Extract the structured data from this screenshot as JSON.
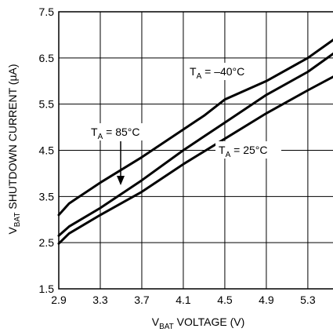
{
  "chart_data": {
    "type": "line",
    "xlabel": {
      "main": "V",
      "sub": "BAT",
      "rest": " VOLTAGE (V)"
    },
    "ylabel": {
      "main": "V",
      "sub": "BAT",
      "rest": " SHUTDOWN CURRENT (µA)"
    },
    "xlim": [
      2.9,
      5.55
    ],
    "ylim": [
      1.5,
      7.5
    ],
    "xticks": [
      2.9,
      3.3,
      3.7,
      4.1,
      4.5,
      4.9,
      5.3
    ],
    "xtick_labels": [
      "2.9",
      "3.3",
      "3.7",
      "4.1",
      "4.5",
      "4.9",
      "5.3"
    ],
    "yticks": [
      1.5,
      2.5,
      3.5,
      4.5,
      5.5,
      6.5,
      7.5
    ],
    "ytick_labels": [
      "1.5",
      "2.5",
      "3.5",
      "4.5",
      "5.5",
      "6.5",
      "7.5"
    ],
    "grid": true,
    "series": [
      {
        "name": "TA = –40°C",
        "x": [
          2.9,
          3.0,
          3.3,
          3.7,
          4.1,
          4.3,
          4.5,
          4.9,
          5.3,
          5.55
        ],
        "y": [
          3.1,
          3.35,
          3.8,
          4.35,
          4.95,
          5.25,
          5.6,
          6.0,
          6.5,
          6.9
        ]
      },
      {
        "name": "TA = 85°C",
        "x": [
          2.9,
          3.0,
          3.3,
          3.7,
          4.1,
          4.5,
          4.9,
          5.3,
          5.55
        ],
        "y": [
          2.65,
          2.85,
          3.25,
          3.85,
          4.5,
          5.1,
          5.7,
          6.2,
          6.6
        ]
      },
      {
        "name": "TA = 25°C",
        "x": [
          2.9,
          3.0,
          3.3,
          3.7,
          4.1,
          4.5,
          4.9,
          5.3,
          5.55
        ],
        "y": [
          2.48,
          2.7,
          3.1,
          3.6,
          4.2,
          4.75,
          5.3,
          5.8,
          6.1
        ]
      }
    ],
    "annotations": [
      {
        "main": "T",
        "sub": "A",
        "rest": " = –40°C"
      },
      {
        "main": "T",
        "sub": "A",
        "rest": " = 85°C"
      },
      {
        "main": "T",
        "sub": "A",
        "rest": " = 25°C"
      }
    ]
  }
}
